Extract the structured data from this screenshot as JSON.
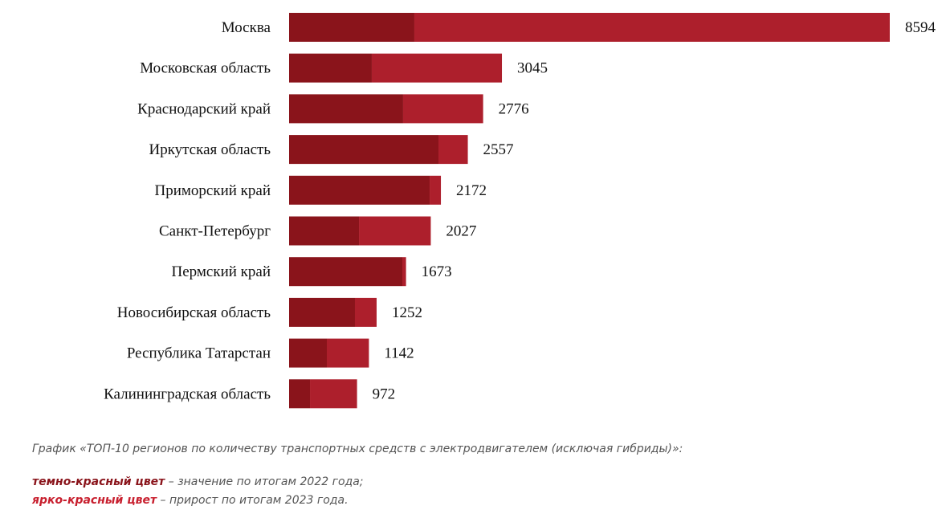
{
  "chart_data": {
    "type": "bar",
    "orientation": "horizontal",
    "stacked": true,
    "categories": [
      "Москва",
      "Московская область",
      "Краснодарский край",
      "Иркутская область",
      "Приморский край",
      "Санкт-Петербург",
      "Пермский край",
      "Новосибирская область",
      "Республика Татарстан",
      "Калининградская область"
    ],
    "series": [
      {
        "name": "темно-красный цвет",
        "color": "#8a141b",
        "values": [
          1792,
          1183,
          1631,
          2137,
          2011,
          1000,
          1620,
          942,
          540,
          299
        ]
      },
      {
        "name": "ярко-красный цвет",
        "color": "#ad1f2c",
        "values": [
          6802,
          1862,
          1145,
          420,
          161,
          1027,
          53,
          310,
          602,
          673
        ]
      }
    ],
    "totals": [
      8594,
      3045,
      2776,
      2557,
      2172,
      2027,
      1673,
      1252,
      1142,
      972
    ],
    "xlim": [
      0,
      8594
    ],
    "grid": false,
    "axes_visible": false
  },
  "caption": "График «ТОП-10 регионов по количеству транспортных средств с электродвигателем (исключая гибриды)»:",
  "legend": [
    {
      "key": "темно-красный цвет",
      "text": " – значение по итогам 2022 года;",
      "color": "#8a141b"
    },
    {
      "key": "ярко-красный цвет",
      "text": " – прирост по итогам 2023 года.",
      "color": "#c8202f"
    }
  ]
}
